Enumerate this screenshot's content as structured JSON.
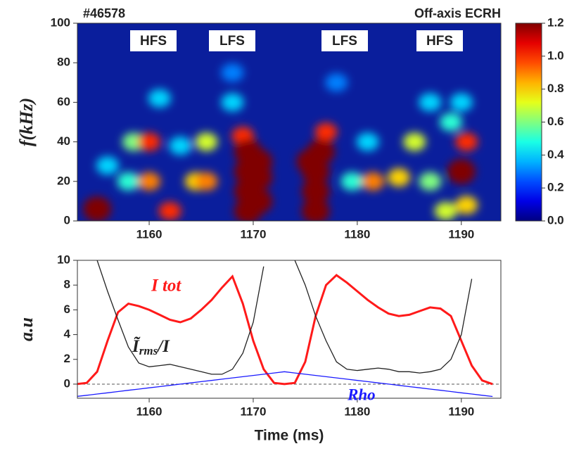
{
  "chart_data": [
    {
      "type": "heatmap",
      "title_left": "#46578",
      "title_right": "Off-axis ECRH",
      "ylabel": "f(kHz)",
      "annotations": [
        "HFS",
        "LFS",
        "LFS",
        "HFS"
      ],
      "xlim": [
        1153.1,
        1193.8
      ],
      "xticks": [
        1160,
        1170,
        1180,
        1190
      ],
      "ylim": [
        0,
        100
      ],
      "yticks": [
        0,
        20,
        40,
        60,
        80,
        100
      ],
      "colormap": "jet",
      "background": "#0a1e9c",
      "clim": [
        0,
        1.2
      ],
      "cticks": [
        {
          "value": 0,
          "label": "0.0"
        },
        0.2,
        0.4,
        0.6,
        0.8,
        {
          "value": 1,
          "label": "1.0"
        },
        1.2
      ],
      "spots": {
        "x": [
          1168,
          1178,
          1168,
          1161,
          1181,
          1163,
          1190,
          1187,
          1156,
          1158,
          1179.5,
          1189,
          1158.5,
          1187,
          1165.5,
          1185.5,
          1188.5,
          1190.5,
          1164.5,
          1184,
          1160,
          1165.5,
          1181.5,
          1162,
          1160,
          1169,
          1177,
          1190.5,
          1155,
          1169.5,
          1169.5,
          1169.5,
          1169.5,
          1170.5,
          1170.5,
          1170.5,
          1176,
          1176,
          1176,
          1176.5,
          1175.5,
          1190
        ],
        "y": [
          75,
          70,
          60,
          62,
          40,
          38,
          60,
          60,
          28,
          20,
          20,
          50,
          40,
          20,
          40,
          40,
          5,
          8,
          20,
          22,
          20,
          20,
          20,
          5,
          40,
          43,
          45,
          40,
          6,
          5,
          15,
          25,
          35,
          10,
          22,
          30,
          5,
          15,
          25,
          35,
          30,
          25
        ],
        "values": [
          0.3,
          0.3,
          0.4,
          0.4,
          0.4,
          0.4,
          0.4,
          0.4,
          0.4,
          0.5,
          0.5,
          0.5,
          0.6,
          0.6,
          0.7,
          0.7,
          0.7,
          0.8,
          0.8,
          0.8,
          0.9,
          0.9,
          0.9,
          1.0,
          1.0,
          1.0,
          1.0,
          1.0,
          1.2,
          1.2,
          1.2,
          1.2,
          1.2,
          1.2,
          1.2,
          1.2,
          1.2,
          1.2,
          1.2,
          1.2,
          1.2,
          1.2
        ]
      }
    },
    {
      "type": "line",
      "xlabel": "Time (ms)",
      "ylabel": "a.u",
      "xlim": [
        1153.1,
        1193.8
      ],
      "xticks": [
        1160,
        1170,
        1180,
        1190
      ],
      "ylim": [
        -1.14,
        10
      ],
      "yticks": [
        0,
        2,
        4,
        6,
        8,
        10
      ],
      "reference_line": 0,
      "x": [
        1153,
        1154,
        1155,
        1156,
        1157,
        1158,
        1159,
        1160,
        1161,
        1162,
        1163,
        1164,
        1165,
        1166,
        1167,
        1168,
        1169,
        1170,
        1171,
        1172,
        1173,
        1174,
        1175,
        1176,
        1177,
        1178,
        1179,
        1180,
        1181,
        1182,
        1183,
        1184,
        1185,
        1186,
        1187,
        1188,
        1189,
        1190,
        1191,
        1192,
        1193
      ],
      "series": [
        {
          "name": "I tot",
          "color": "#ff1a1a",
          "values": [
            0,
            0.1,
            1,
            3.5,
            5.8,
            6.5,
            6.3,
            6.0,
            5.6,
            5.2,
            5.0,
            5.3,
            6.0,
            6.8,
            7.8,
            8.7,
            6.5,
            3.5,
            1.2,
            0.1,
            0,
            0.1,
            1.8,
            5.5,
            8.0,
            8.8,
            8.2,
            7.5,
            6.8,
            6.2,
            5.7,
            5.5,
            5.6,
            5.9,
            6.2,
            6.1,
            5.5,
            3.5,
            1.5,
            0.3,
            0
          ]
        },
        {
          "name": {
            "base": "Ĩ",
            "sub": "rms",
            "tail": "/I"
          },
          "color": "#222222",
          "values": [
            null,
            null,
            10,
            7.5,
            5.2,
            3.0,
            1.7,
            1.4,
            1.5,
            1.6,
            1.4,
            1.2,
            1.0,
            0.8,
            0.8,
            1.2,
            2.5,
            5.0,
            9.5,
            null,
            null,
            10,
            8,
            5.5,
            3.5,
            1.8,
            1.2,
            1.1,
            1.2,
            1.3,
            1.2,
            1.0,
            1.0,
            0.9,
            1.0,
            1.2,
            2.0,
            4.0,
            8.5,
            null,
            null
          ]
        },
        {
          "name": "Rho",
          "color": "#1a1aff",
          "values": [
            -1.0,
            -0.9,
            -0.8,
            -0.7,
            -0.6,
            -0.5,
            -0.4,
            -0.3,
            -0.2,
            -0.1,
            0,
            0.1,
            0.2,
            0.3,
            0.4,
            0.5,
            0.6,
            0.7,
            0.8,
            0.9,
            1.0,
            0.9,
            0.8,
            0.7,
            0.6,
            0.5,
            0.4,
            0.3,
            0.2,
            0.1,
            0,
            -0.1,
            -0.2,
            -0.3,
            -0.4,
            -0.5,
            -0.6,
            -0.7,
            -0.8,
            -0.9,
            -1.0
          ]
        }
      ]
    }
  ]
}
